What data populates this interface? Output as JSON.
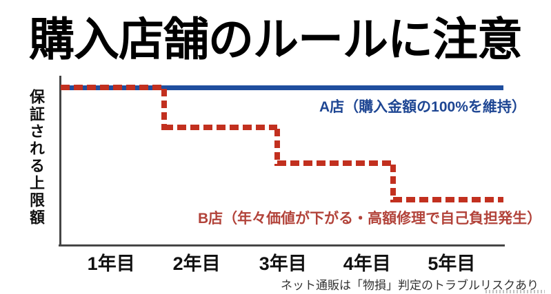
{
  "page": {
    "background": "#ffffff"
  },
  "title": "購入店舗のルールに注意",
  "chart": {
    "y_axis_label": "保証される上限額",
    "x_tick_labels": [
      "1年目",
      "2年目",
      "3年目",
      "4年目",
      "5年目"
    ],
    "series_a_annotation": "A店（購入金額の100%を維持）",
    "series_b_annotation": "B店（年々価値が下がる・高額修理で自己負担発生）",
    "colors": {
      "series_a_line": "#1f4e9e",
      "series_a_text": "#1e4693",
      "series_b_line": "#c2301f",
      "series_b_text": "#b2433a",
      "axis": "#454545"
    }
  },
  "chart_data": {
    "type": "line",
    "title": "購入店舗のルールに注意",
    "ylabel": "保証される上限額",
    "x_categories": [
      "1年目",
      "2年目",
      "3年目",
      "4年目",
      "5年目"
    ],
    "ylim": [
      0,
      100
    ],
    "grid": false,
    "legend_position": "inline-annotations",
    "note": "y軸目盛りなし（値は購入金額に対する％の目視推定）",
    "series": [
      {
        "name": "A店",
        "annotation": "A店（購入金額の100%を維持）",
        "style": "solid",
        "color": "#1f4e9e",
        "values_percent": [
          100,
          100,
          100,
          100,
          100
        ]
      },
      {
        "name": "B店",
        "annotation": "B店（年々価値が下がる・高額修理で自己負担発生）",
        "style": "dashed-step",
        "color": "#c2301f",
        "segment_values_percent": [
          100,
          75,
          52,
          29
        ],
        "values_percent": [
          100,
          75,
          52,
          29,
          29
        ],
        "step_x_fractions": [
          0,
          0.234,
          0.489,
          0.751,
          1.0
        ]
      }
    ]
  },
  "footer": {
    "note": "ネット通販は「物損」判定のトラブルリスクあり"
  }
}
